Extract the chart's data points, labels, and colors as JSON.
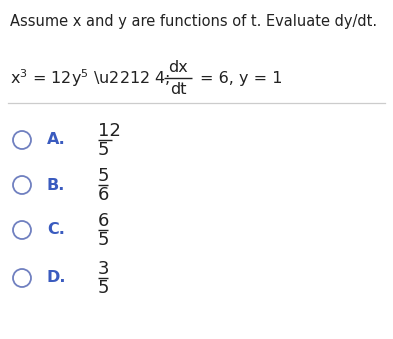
{
  "title": "Assume x and y are functions of t. Evaluate dy/dt.",
  "options": [
    {
      "label": "A.",
      "num": "12",
      "den": "5"
    },
    {
      "label": "B.",
      "num": "5",
      "den": "6"
    },
    {
      "label": "C.",
      "num": "6",
      "den": "5"
    },
    {
      "label": "D.",
      "num": "3",
      "den": "5"
    }
  ],
  "bg_color": "#ffffff",
  "text_color": "#222222",
  "label_color": "#3a5bbf",
  "circle_color": "#7080c0",
  "title_fontsize": 10.5,
  "eq_fontsize": 11.5,
  "option_label_fontsize": 11.5,
  "option_num_fontsize": 13
}
